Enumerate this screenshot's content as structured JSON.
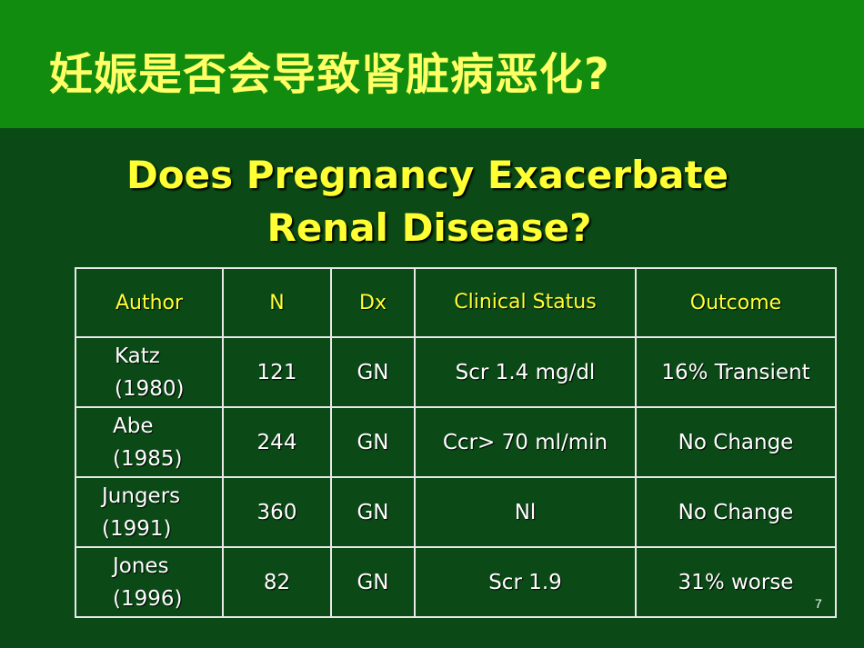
{
  "slide": {
    "title": "妊娠是否会导致肾脏病恶化?",
    "heading_line1": "Does  Pregnancy Exacerbate",
    "heading_line2": "Renal Disease?",
    "page_number": "7"
  },
  "table": {
    "headers": [
      "Author",
      "N",
      "Dx",
      "Clinical Status",
      "Outcome"
    ],
    "rows": [
      {
        "author_name": "Katz",
        "author_year": "(1980)",
        "n": "121",
        "dx": "GN",
        "status": "Scr  1.4 mg/dl",
        "outcome": "16% Transient"
      },
      {
        "author_name": "Abe",
        "author_year": "(1985)",
        "n": "244",
        "dx": "GN",
        "status": "Ccr> 70 ml/min",
        "outcome": "No Change"
      },
      {
        "author_name": "Jungers",
        "author_year": "(1991)",
        "n": "360",
        "dx": "GN",
        "status": "Nl",
        "outcome": "No Change"
      },
      {
        "author_name": "Jones",
        "author_year": "(1996)",
        "n": "82",
        "dx": "GN",
        "status": "Scr  1.9",
        "outcome": "31% worse"
      }
    ]
  }
}
